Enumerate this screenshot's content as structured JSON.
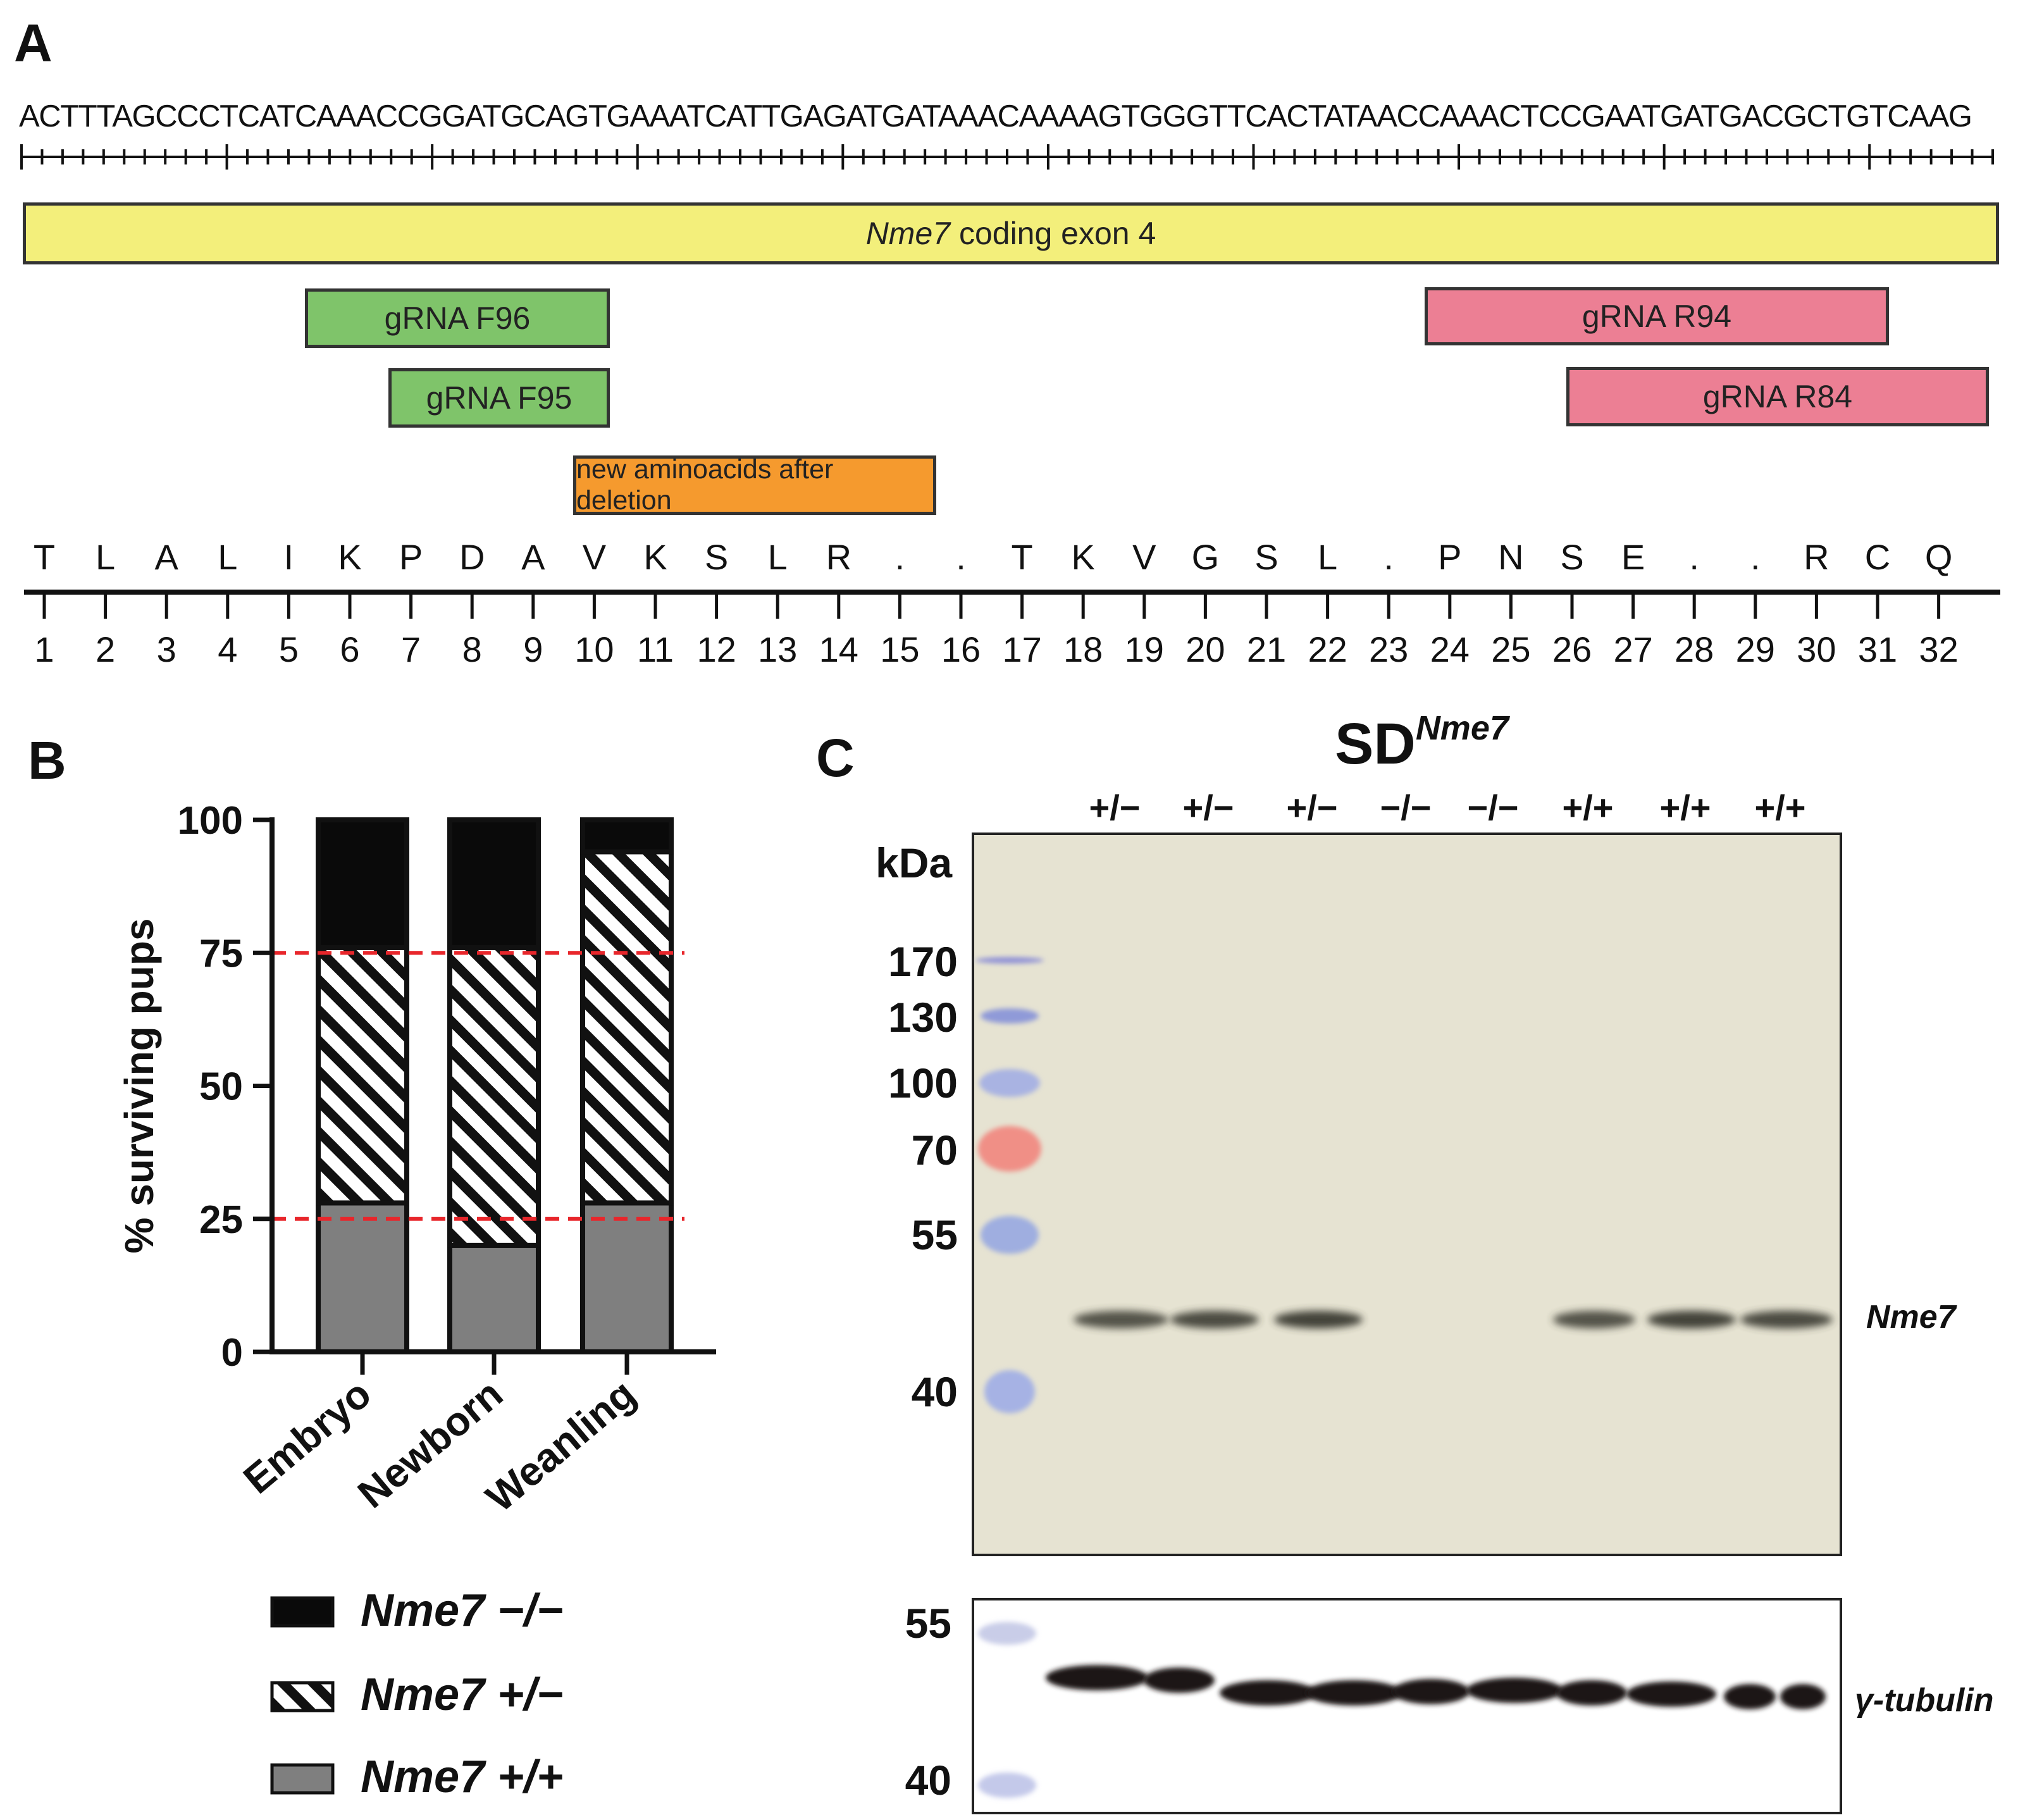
{
  "panel_a": {
    "label": "A",
    "sequence": "ACTTTAGCCCTCATCAAACCGGATGCAGTGAAATCATTGAGATGATAAACAAAAGTGGGTTCACTATAACCAAACTCCGAATGATGACGCTGTCAAG",
    "exon": {
      "gene": "Nme7",
      "text": " coding exon 4",
      "color": "#f3ef7b"
    },
    "grnas": [
      {
        "label": "gRNA F96",
        "color": "#7fc46a"
      },
      {
        "label": "gRNA F95",
        "color": "#7fc46a"
      },
      {
        "label": "gRNA R94",
        "color": "#ec7f94"
      },
      {
        "label": "gRNA R84",
        "color": "#ec7f94"
      }
    ],
    "new_aa_label": "new aminoacids after deletion",
    "amino_acids": [
      "T",
      "L",
      "A",
      "L",
      "I",
      "K",
      "P",
      "D",
      "A",
      "V",
      "K",
      "S",
      "L",
      "R",
      ".",
      ".",
      "T",
      "K",
      "V",
      "G",
      "S",
      "L",
      ".",
      "P",
      "N",
      "S",
      "E",
      ".",
      ".",
      "R",
      "C",
      "Q"
    ],
    "positions": [
      "1",
      "2",
      "3",
      "4",
      "5",
      "6",
      "7",
      "8",
      "9",
      "10",
      "11",
      "12",
      "13",
      "14",
      "15",
      "16",
      "17",
      "18",
      "19",
      "20",
      "21",
      "22",
      "23",
      "24",
      "25",
      "26",
      "27",
      "28",
      "29",
      "30",
      "31",
      "32"
    ]
  },
  "panel_b": {
    "label": "B",
    "chart_data": {
      "type": "bar",
      "stacked": true,
      "ylabel": "% surviving pups",
      "ylim": [
        0,
        100
      ],
      "yticks": [
        "0",
        "25",
        "50",
        "75",
        "100"
      ],
      "categories": [
        "Embryo",
        "Newborn",
        "Weanling"
      ],
      "series": [
        {
          "name": "Nme7 +/+",
          "values": [
            28,
            20,
            28
          ],
          "color": "#7f7f7f",
          "pattern": "solid-gray"
        },
        {
          "name": "Nme7 +/−",
          "values": [
            48,
            56,
            66
          ],
          "color": "#ffffff",
          "pattern": "diagonal-stripes"
        },
        {
          "name": "Nme7 −/−",
          "values": [
            24,
            24,
            6
          ],
          "color": "#0a0a0a",
          "pattern": "solid-black"
        }
      ],
      "reference_lines": [
        25,
        75
      ],
      "reference_line_color": "#e8262b",
      "legend": [
        {
          "gene": "Nme7",
          "genotype": "−/−",
          "pattern": "solid-black"
        },
        {
          "gene": "Nme7",
          "genotype": "+/−",
          "pattern": "diagonal-stripes"
        },
        {
          "gene": "Nme7",
          "genotype": "+/+",
          "pattern": "solid-gray"
        }
      ]
    }
  },
  "panel_c": {
    "label": "C",
    "title_main": "SD",
    "title_sup": "Nme7",
    "lanes": [
      "+/−",
      "+/−",
      "+/−",
      "−/−",
      "−/−",
      "+/+",
      "+/+",
      "+/+"
    ],
    "kda_label": "kDa",
    "markers": [
      "170",
      "130",
      "100",
      "70",
      "55",
      "40"
    ],
    "band_label": "Nme7",
    "lower_markers": [
      "55",
      "40"
    ],
    "lower_band_label": "γ-tubulin"
  }
}
